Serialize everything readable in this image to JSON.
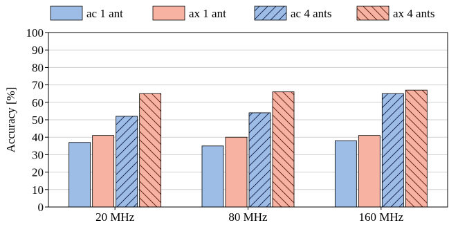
{
  "chart_data": {
    "type": "bar",
    "title": "",
    "xlabel": "",
    "ylabel": "Accuracy [%]",
    "ylim": [
      0,
      100
    ],
    "yticks": [
      0,
      10,
      20,
      30,
      40,
      50,
      60,
      70,
      80,
      90,
      100
    ],
    "grid": true,
    "legend_position": "top",
    "categories": [
      "20 MHz",
      "80 MHz",
      "160 MHz"
    ],
    "series": [
      {
        "name": "ac 1 ant",
        "values": [
          37,
          35,
          38
        ],
        "color": "#9dbde6",
        "hatch": "none"
      },
      {
        "name": "ax 1 ant",
        "values": [
          41,
          40,
          41
        ],
        "color": "#f7b2a2",
        "hatch": "none"
      },
      {
        "name": "ac 4 ants",
        "values": [
          52,
          54,
          65
        ],
        "color": "#9dbde6",
        "hatch": "forward"
      },
      {
        "name": "ax 4 ants",
        "values": [
          65,
          66,
          67
        ],
        "color": "#f7b2a2",
        "hatch": "backward"
      }
    ]
  }
}
